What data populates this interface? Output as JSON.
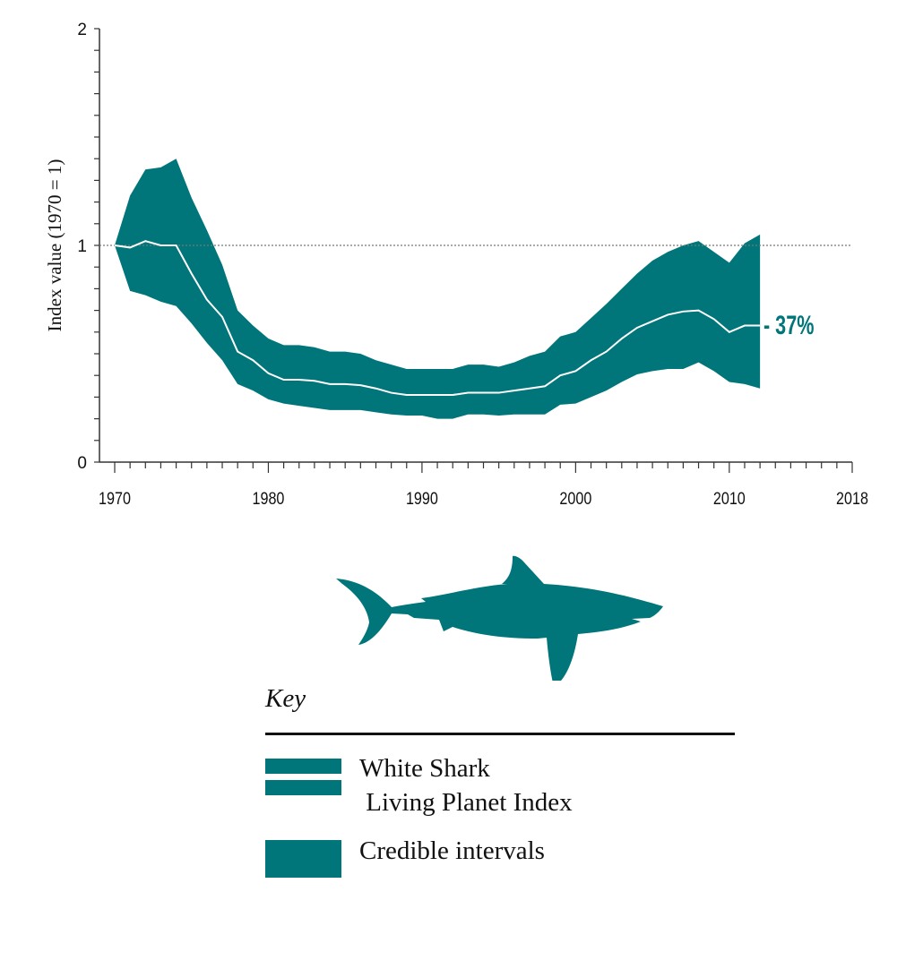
{
  "chart_data": {
    "type": "area",
    "title": "",
    "xlabel": "",
    "ylabel": "Index value (1970 = 1)",
    "xlim": [
      1970,
      2018
    ],
    "ylim": [
      0,
      2
    ],
    "x_tick_labels": [
      "1970",
      "1980",
      "1990",
      "2000",
      "2010",
      "2018"
    ],
    "y_tick_labels": [
      "0",
      "1",
      "2"
    ],
    "reference_line": 1,
    "end_label": "- 37%",
    "colors": {
      "band": "#00757a",
      "index_line": "#ffffff",
      "reference": "#777777"
    },
    "x": [
      1970,
      1971,
      1972,
      1973,
      1974,
      1975,
      1976,
      1977,
      1978,
      1979,
      1980,
      1981,
      1982,
      1983,
      1984,
      1985,
      1986,
      1987,
      1988,
      1989,
      1990,
      1991,
      1992,
      1993,
      1994,
      1995,
      1996,
      1997,
      1998,
      1999,
      2000,
      2001,
      2002,
      2003,
      2004,
      2005,
      2006,
      2007,
      2008,
      2009,
      2010,
      2011,
      2012
    ],
    "series": [
      {
        "name": "White Shark Living Planet Index",
        "values": [
          1,
          0.99,
          1.02,
          1.0,
          1.0,
          0.87,
          0.75,
          0.67,
          0.51,
          0.47,
          0.41,
          0.38,
          0.38,
          0.375,
          0.36,
          0.36,
          0.355,
          0.34,
          0.32,
          0.31,
          0.31,
          0.31,
          0.31,
          0.32,
          0.32,
          0.32,
          0.33,
          0.34,
          0.35,
          0.4,
          0.42,
          0.47,
          0.51,
          0.57,
          0.62,
          0.65,
          0.68,
          0.695,
          0.7,
          0.66,
          0.6,
          0.63,
          0.63
        ]
      },
      {
        "name": "Credible intervals",
        "upper": [
          1,
          1.23,
          1.35,
          1.36,
          1.4,
          1.22,
          1.07,
          0.91,
          0.7,
          0.63,
          0.57,
          0.54,
          0.54,
          0.53,
          0.51,
          0.51,
          0.5,
          0.47,
          0.45,
          0.43,
          0.43,
          0.43,
          0.43,
          0.45,
          0.45,
          0.44,
          0.46,
          0.49,
          0.51,
          0.58,
          0.6,
          0.665,
          0.73,
          0.8,
          0.87,
          0.93,
          0.97,
          1.0,
          1.02,
          0.97,
          0.92,
          1.01,
          1.05
        ],
        "lower": [
          1,
          0.79,
          0.77,
          0.74,
          0.72,
          0.64,
          0.55,
          0.47,
          0.36,
          0.33,
          0.29,
          0.27,
          0.26,
          0.25,
          0.24,
          0.24,
          0.24,
          0.23,
          0.22,
          0.215,
          0.215,
          0.2,
          0.2,
          0.22,
          0.22,
          0.215,
          0.22,
          0.22,
          0.22,
          0.265,
          0.27,
          0.3,
          0.33,
          0.37,
          0.405,
          0.42,
          0.43,
          0.43,
          0.46,
          0.42,
          0.37,
          0.36,
          0.34
        ]
      }
    ],
    "grid": false,
    "legend": "bottom"
  },
  "key": {
    "title": "Key",
    "items": [
      {
        "label_line1": "White Shark",
        "label_line2": " Living Planet Index"
      },
      {
        "label": "Credible intervals"
      }
    ]
  },
  "illustration": "shark-silhouette"
}
